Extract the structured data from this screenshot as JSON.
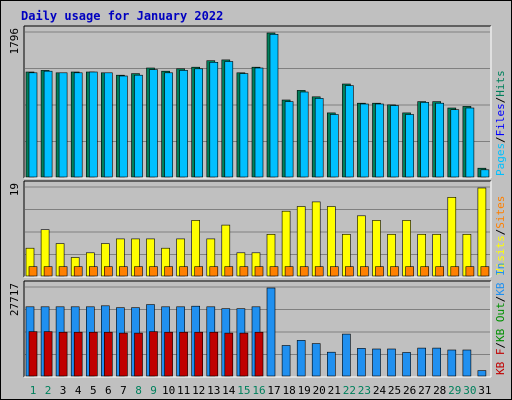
{
  "chart_data": {
    "type": "bar",
    "title": "Daily usage for January 2022",
    "categories": [
      "1",
      "2",
      "3",
      "4",
      "5",
      "6",
      "7",
      "8",
      "9",
      "10",
      "11",
      "12",
      "13",
      "14",
      "15",
      "16",
      "17",
      "18",
      "19",
      "20",
      "21",
      "22",
      "23",
      "24",
      "25",
      "26",
      "27",
      "28",
      "29",
      "30",
      "31"
    ],
    "weekend_days": [
      "1",
      "2",
      "8",
      "9",
      "15",
      "16",
      "22",
      "23",
      "29",
      "30"
    ],
    "colors": {
      "background": "#c0c0c0",
      "panel": "#c0c0c0",
      "hits": "#00805c",
      "files": "#0000ff",
      "pages": "#00c0ff",
      "visits": "#ffff00",
      "sites": "#ff8000",
      "kb_in": "#009000",
      "kb_out": "#2090f0",
      "kb_f": "#c00000",
      "title": "#0000c0",
      "weekday_label": "#000000",
      "weekend_label": "#00805c",
      "gridline": "#808080"
    },
    "panels": [
      {
        "max_label": "1796",
        "ylim": [
          0,
          1796
        ],
        "legend": [
          {
            "text": "Pages",
            "color": "#00c0ff"
          },
          {
            "text": "Files",
            "color": "#0000ff"
          },
          {
            "text": "Hits",
            "color": "#00805c"
          }
        ],
        "series": [
          {
            "name": "Hits",
            "color": "#00805c",
            "values": [
              1310,
              1330,
              1300,
              1310,
              1310,
              1300,
              1270,
              1290,
              1360,
              1320,
              1350,
              1370,
              1450,
              1460,
              1300,
              1370,
              1800,
              960,
              1080,
              1000,
              800,
              1160,
              920,
              920,
              900,
              800,
              940,
              940,
              860,
              880,
              110
            ]
          },
          {
            "name": "Pages",
            "color": "#00c0ff",
            "values": [
              1300,
              1320,
              1300,
              1300,
              1310,
              1300,
              1260,
              1270,
              1340,
              1300,
              1330,
              1350,
              1430,
              1440,
              1290,
              1360,
              1780,
              940,
              1060,
              980,
              780,
              1140,
              910,
              910,
              890,
              780,
              930,
              920,
              840,
              860,
              90
            ]
          }
        ]
      },
      {
        "max_label": "19",
        "ylim": [
          0,
          19
        ],
        "legend": [
          {
            "text": "Visits",
            "color": "#ffff00"
          },
          {
            "text": "Sites",
            "color": "#ff8000"
          }
        ],
        "series": [
          {
            "name": "Visits",
            "color": "#ffff00",
            "values": [
              6,
              10,
              7,
              4,
              5,
              7,
              8,
              8,
              8,
              6,
              8,
              12,
              8,
              11,
              5,
              5,
              9,
              14,
              15,
              16,
              15,
              9,
              13,
              12,
              9,
              12,
              9,
              9,
              17,
              9,
              19
            ]
          },
          {
            "name": "Sites",
            "color": "#ff8000",
            "values": [
              2,
              2,
              2,
              2,
              2,
              2,
              2,
              2,
              2,
              2,
              2,
              2,
              2,
              2,
              2,
              2,
              2,
              2,
              2,
              2,
              2,
              2,
              2,
              2,
              2,
              2,
              2,
              2,
              2,
              2,
              2
            ]
          }
        ]
      },
      {
        "max_label": "27717",
        "ylim": [
          0,
          27717
        ],
        "legend": [
          {
            "text": "KB F",
            "color": "#c00000"
          },
          {
            "text": "KB Out",
            "color": "#009000"
          },
          {
            "text": "KB In",
            "color": "#2090f0"
          }
        ],
        "series": [
          {
            "name": "KB In",
            "color": "#2090f0",
            "values": [
              21800,
              21800,
              21800,
              21800,
              21800,
              22100,
              21500,
              21500,
              22500,
              21800,
              21800,
              22000,
              21800,
              21200,
              21200,
              21800,
              28600,
              9600,
              11200,
              10200,
              7500,
              13200,
              8700,
              8500,
              8500,
              7400,
              8800,
              8800,
              8200,
              8200,
              1700
            ]
          },
          {
            "name": "KB F",
            "color": "#c00000",
            "values": [
              14000,
              14000,
              13800,
              13800,
              13800,
              13800,
              13500,
              13500,
              14000,
              13800,
              13800,
              13800,
              13800,
              13500,
              13500,
              13800,
              0,
              0,
              0,
              0,
              0,
              0,
              0,
              0,
              0,
              0,
              0,
              0,
              0,
              0,
              0
            ]
          }
        ]
      }
    ]
  }
}
